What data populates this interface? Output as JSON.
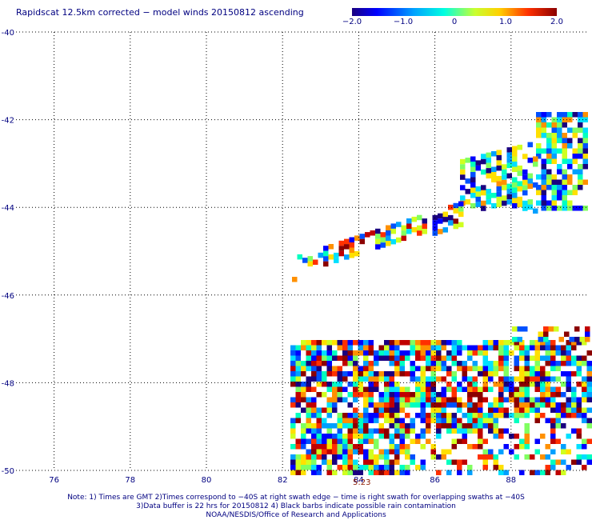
{
  "title": "Rapidscat 12.5km corrected − model winds 20150812 ascending",
  "legend": {
    "ticks": [
      {
        "value": -2.0,
        "label": "−2.0"
      },
      {
        "value": -1.0,
        "label": "−1.0"
      },
      {
        "value": 0,
        "label": "0"
      },
      {
        "value": 1.0,
        "label": "1.0"
      },
      {
        "value": 2.0,
        "label": "2.0"
      }
    ],
    "range": [
      -2.0,
      2.0
    ]
  },
  "axes": {
    "lon_ticks": [
      "76",
      "78",
      "80",
      "82",
      "84",
      "86",
      "88"
    ],
    "lat_ticks": [
      "-40",
      "-42",
      "-44",
      "-46",
      "-48",
      "-50"
    ],
    "lon_range": [
      75,
      90
    ],
    "lat_range": [
      -40,
      -50
    ],
    "grid": true
  },
  "time_label": "5:23",
  "footer": {
    "line1": "Note: 1) Times are GMT 2)Times correspond to −40S at right swath edge − time is right swath for overlapping swaths at −40S",
    "line2": "3)Data buffer is 22 hrs for 20150812 4) Black barbs indicate possible rain contamination",
    "line3": "NOAA/NESDIS/Office of Research and Applications"
  }
}
